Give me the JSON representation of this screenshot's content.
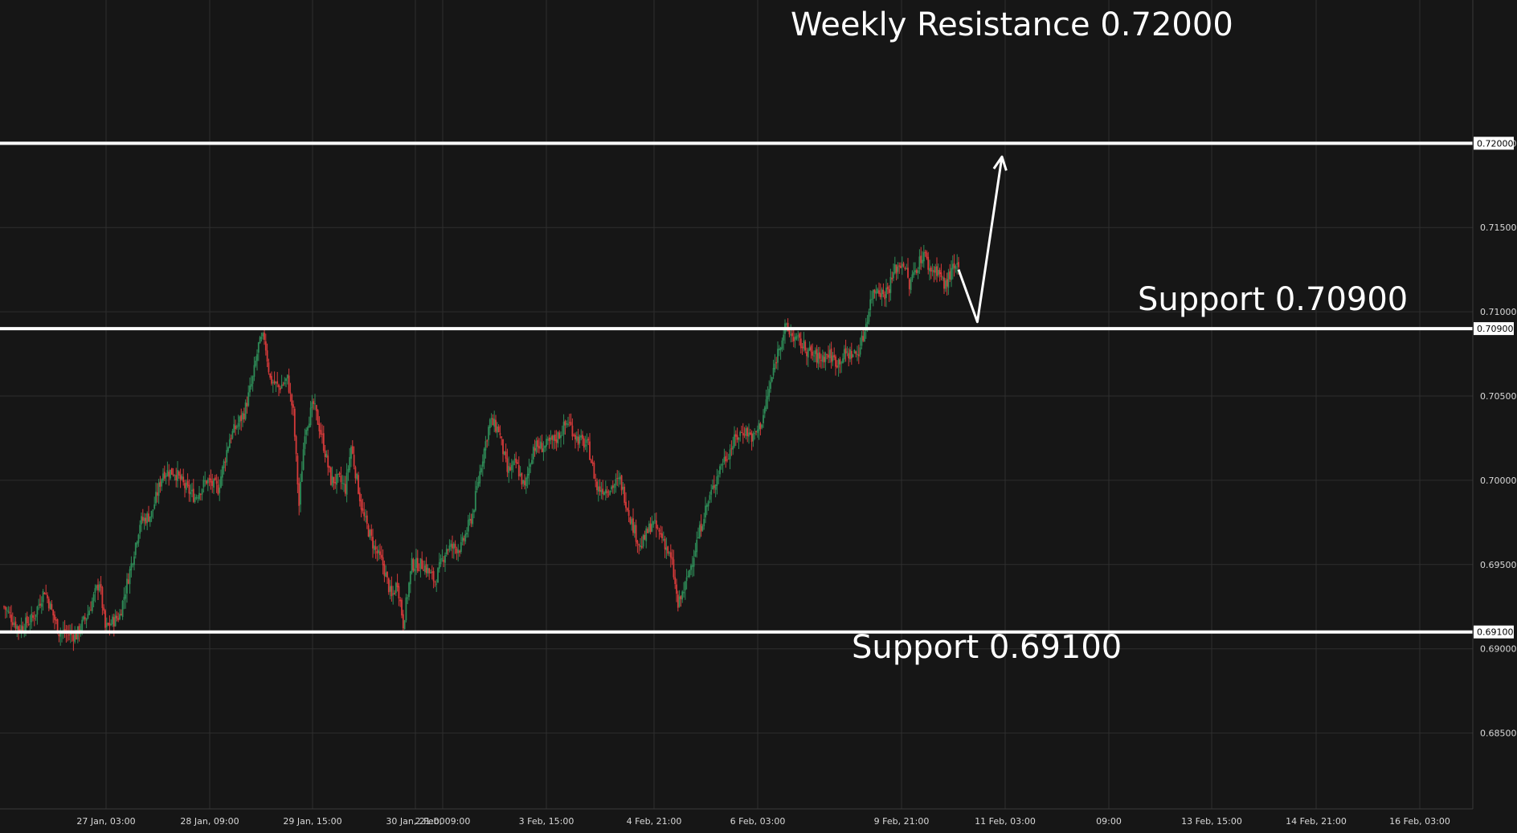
{
  "colors": {
    "background": "#161616",
    "grid": "#2e2e2e",
    "up": "#2e8b57",
    "down": "#d63a3a",
    "level_line": "#ffffff",
    "axis_text": "#d9d9d9"
  },
  "annotations": {
    "resistance": "Weekly Resistance 0.72000",
    "support_mid": "Support 0.70900",
    "support_low": "Support 0.69100"
  },
  "chart_data": {
    "type": "candlestick",
    "grid": true,
    "y_axis_position": "right",
    "ylim": [
      0.6805,
      0.7285
    ],
    "y_ticks": [
      "0.72000",
      "0.71500",
      "0.71000",
      "0.70500",
      "0.70000",
      "0.69500",
      "0.69000",
      "0.68500"
    ],
    "x_ticks": [
      "27 Jan, 03:00",
      "28 Jan, 09:00",
      "29 Jan, 15:00",
      "30 Jan, 21:00",
      "2 Feb, 09:00",
      "3 Feb, 15:00",
      "4 Feb, 21:00",
      "6 Feb, 03:00",
      "9 Feb, 21:00",
      "11 Feb, 03:00",
      "09:00",
      "13 Feb, 15:00",
      "14 Feb, 21:00",
      "16 Feb, 03:00"
    ],
    "levels": [
      {
        "label": "0.72000",
        "value": 0.72
      },
      {
        "label": "0.70900",
        "value": 0.709
      },
      {
        "label": "0.69100",
        "value": 0.691
      }
    ],
    "close_path": [
      [
        0,
        0.6925
      ],
      [
        10,
        0.6912
      ],
      [
        20,
        0.6918
      ],
      [
        28,
        0.6935
      ],
      [
        38,
        0.691
      ],
      [
        50,
        0.6908
      ],
      [
        58,
        0.6921
      ],
      [
        66,
        0.694
      ],
      [
        70,
        0.6912
      ],
      [
        80,
        0.692
      ],
      [
        88,
        0.695
      ],
      [
        94,
        0.6975
      ],
      [
        102,
        0.698
      ],
      [
        110,
        0.7005
      ],
      [
        118,
        0.7005
      ],
      [
        126,
        0.6995
      ],
      [
        132,
        0.699
      ],
      [
        140,
        0.7
      ],
      [
        148,
        0.6995
      ],
      [
        156,
        0.7025
      ],
      [
        166,
        0.704
      ],
      [
        172,
        0.706
      ],
      [
        176,
        0.708
      ],
      [
        180,
        0.7085
      ],
      [
        184,
        0.706
      ],
      [
        190,
        0.7055
      ],
      [
        196,
        0.706
      ],
      [
        200,
        0.704
      ],
      [
        204,
        0.6985
      ],
      [
        208,
        0.703
      ],
      [
        214,
        0.7045
      ],
      [
        220,
        0.7025
      ],
      [
        226,
        0.7
      ],
      [
        232,
        0.7
      ],
      [
        236,
        0.6995
      ],
      [
        240,
        0.702
      ],
      [
        248,
        0.698
      ],
      [
        256,
        0.696
      ],
      [
        262,
        0.695
      ],
      [
        268,
        0.693
      ],
      [
        272,
        0.694
      ],
      [
        276,
        0.6915
      ],
      [
        282,
        0.695
      ],
      [
        290,
        0.695
      ],
      [
        298,
        0.694
      ],
      [
        306,
        0.696
      ],
      [
        316,
        0.696
      ],
      [
        324,
        0.698
      ],
      [
        330,
        0.701
      ],
      [
        336,
        0.7035
      ],
      [
        342,
        0.703
      ],
      [
        348,
        0.7005
      ],
      [
        354,
        0.701
      ],
      [
        360,
        0.6995
      ],
      [
        366,
        0.702
      ],
      [
        374,
        0.702
      ],
      [
        382,
        0.7025
      ],
      [
        390,
        0.7035
      ],
      [
        396,
        0.7025
      ],
      [
        404,
        0.702
      ],
      [
        410,
        0.6995
      ],
      [
        418,
        0.6995
      ],
      [
        426,
        0.7
      ],
      [
        434,
        0.6975
      ],
      [
        440,
        0.696
      ],
      [
        448,
        0.6975
      ],
      [
        456,
        0.6965
      ],
      [
        462,
        0.695
      ],
      [
        466,
        0.6925
      ],
      [
        472,
        0.694
      ],
      [
        478,
        0.696
      ],
      [
        484,
        0.698
      ],
      [
        490,
        0.6995
      ],
      [
        496,
        0.701
      ],
      [
        500,
        0.7015
      ],
      [
        506,
        0.7025
      ],
      [
        512,
        0.703
      ],
      [
        518,
        0.7025
      ],
      [
        524,
        0.7035
      ],
      [
        528,
        0.705
      ],
      [
        532,
        0.7065
      ],
      [
        536,
        0.708
      ],
      [
        540,
        0.709
      ],
      [
        546,
        0.7085
      ],
      [
        552,
        0.708
      ],
      [
        558,
        0.7075
      ],
      [
        564,
        0.7072
      ],
      [
        570,
        0.7075
      ],
      [
        576,
        0.707
      ],
      [
        582,
        0.7075
      ],
      [
        590,
        0.7075
      ],
      [
        594,
        0.7085
      ],
      [
        600,
        0.711
      ],
      [
        604,
        0.7115
      ],
      [
        608,
        0.711
      ],
      [
        612,
        0.7115
      ],
      [
        616,
        0.7125
      ],
      [
        622,
        0.713
      ],
      [
        626,
        0.7115
      ],
      [
        630,
        0.7125
      ],
      [
        636,
        0.7135
      ],
      [
        640,
        0.7125
      ],
      [
        646,
        0.7125
      ],
      [
        650,
        0.7115
      ],
      [
        656,
        0.7125
      ],
      [
        660,
        0.7125
      ]
    ],
    "projection": [
      [
        660,
        0.7125
      ],
      [
        673,
        0.7094
      ],
      [
        690,
        0.7192
      ]
    ]
  }
}
